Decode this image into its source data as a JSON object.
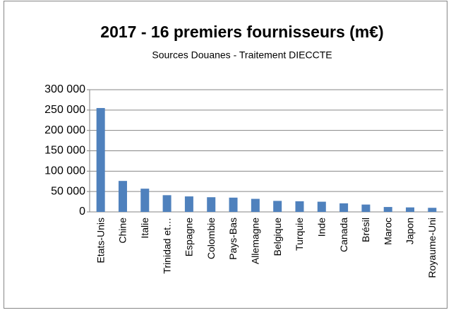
{
  "chart_data": {
    "type": "bar",
    "title": "2017 - 16 premiers fournisseurs (m€)",
    "subtitle": "Sources Douanes - Traitement DIECCTE",
    "categories": [
      "Etats-Unis",
      "Chine",
      "Italie",
      "Trinidad et…",
      "Espagne",
      "Colombie",
      "Pays-Bas",
      "Allemagne",
      "Belgique",
      "Turquie",
      "Inde",
      "Canada",
      "Brésil",
      "Maroc",
      "Japon",
      "Royaume-Uni"
    ],
    "values": [
      255000,
      76000,
      57000,
      41000,
      38000,
      36000,
      35000,
      32000,
      27000,
      26000,
      25000,
      21000,
      18000,
      12000,
      11000,
      10000
    ],
    "color": "#4f81bd",
    "ylim": [
      0,
      300000
    ],
    "yticks": [
      0,
      {
        "value": 50000,
        "label": "50 000"
      },
      {
        "value": 100000,
        "label": "100 000"
      },
      {
        "value": 150000,
        "label": "150 000"
      },
      {
        "value": 200000,
        "label": "200 000"
      },
      {
        "value": 250000,
        "label": "250 000"
      },
      {
        "value": 300000,
        "label": "300 000"
      }
    ],
    "grid": true
  }
}
